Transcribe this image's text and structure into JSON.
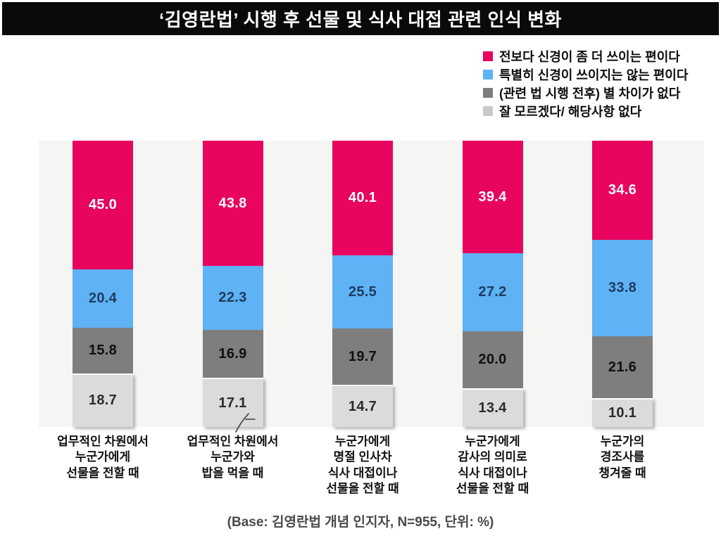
{
  "title": "‘김영란법’ 시행 후 선물 및 식사 대접 관련 인식 변화",
  "legend": {
    "items": [
      {
        "label": "전보다 신경이 좀 더 쓰이는 편이다",
        "color": "#e8045f"
      },
      {
        "label": "특별히 신경이 쓰이지는 않는 편이다",
        "color": "#5fb2f4"
      },
      {
        "label": "(관련 법 시행 전후) 별 차이가 없다",
        "color": "#7e7e7e"
      },
      {
        "label": "잘 모르겠다/ 해당사항 없다",
        "color": "#c9c9c9"
      }
    ]
  },
  "footer": {
    "base_note": "(Base: 김영란법 개념 인지자, N=955, 단위: %)"
  },
  "colors": {
    "title_bar_bg": "#0a0a0a",
    "title_text": "#ffffff",
    "plot_background": "#f5f5f4",
    "page_background": "#ffffff"
  },
  "decorations": {
    "pen_mark": "stray handwritten slash artifact over second category label"
  },
  "chart_data": {
    "type": "bar",
    "subtype": "100-percent-stacked-column",
    "title": "‘김영란법’ 시행 후 선물 및 식사 대접 관련 인식 변화",
    "unit": "%",
    "base_note": "(Base: 김영란법 개념 인지자, N=955, 단위: %)",
    "n": 955,
    "legend_position": "top-right",
    "value_labels": "shown with one decimal inside each segment",
    "categories": [
      "업무적인 차원에서 누군가에게 선물을 전할 때",
      "업무적인 차원에서 누군가와 밥을 먹을 때",
      "누군가에게 명절 인사차 식사 대접이나 선물을 전할 때",
      "누군가에게 감사의 의미로 식사 대접이나 선물을 전할 때",
      "누군가의 경조사를 챙겨줄 때"
    ],
    "categories_lines": [
      [
        "업무적인 차원에서",
        "누군가에게",
        "선물을 전할 때"
      ],
      [
        "업무적인 차원에서",
        "누군가와",
        "밥을 먹을 때"
      ],
      [
        "누군가에게",
        "명절 인사차",
        "식사 대접이나",
        "선물을 전할 때"
      ],
      [
        "누군가에게",
        "감사의 의미로",
        "식사 대접이나",
        "선물을 전할 때"
      ],
      [
        "누군가의",
        "경조사를",
        "챙겨줄 때"
      ]
    ],
    "series": [
      {
        "name": "전보다 신경이 좀 더 쓰이는 편이다",
        "color": "#e8045f",
        "label_color": "#ffffff",
        "values": [
          45.0,
          43.8,
          40.1,
          39.4,
          34.6
        ]
      },
      {
        "name": "특별히 신경이 쓰이지는 않는 편이다",
        "color": "#5fb2f4",
        "label_color": "#1e3a5f",
        "values": [
          20.4,
          22.3,
          25.5,
          27.2,
          33.8
        ]
      },
      {
        "name": "(관련 법 시행 전후) 별 차이가 없다",
        "color": "#7e7e7e",
        "label_color": "#0f0f0f",
        "values": [
          15.8,
          16.9,
          19.7,
          20.0,
          21.6
        ]
      },
      {
        "name": "잘 모르겠다/ 해당사항 없다",
        "color": "#dbdbdb",
        "label_color": "#2b2b2b",
        "values": [
          18.7,
          17.1,
          14.7,
          13.4,
          10.1
        ]
      }
    ]
  }
}
